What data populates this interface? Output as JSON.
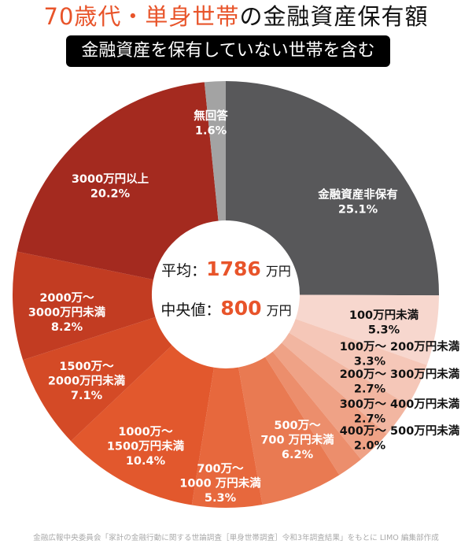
{
  "title": {
    "accent": "70歳代・単身世帯",
    "rest": "の金融資産保有額"
  },
  "subtitle": "金融資産を保有していない世帯を含む",
  "center": {
    "mean_label": "平均：",
    "mean_value": "1786",
    "mean_unit": "万円",
    "median_label": "中央値：",
    "median_value": "800",
    "median_unit": "万円"
  },
  "source": "金融広報中央委員会「家計の金融行動に関する世論調査［単身世帯調査］令和3年調査結果」をもとに LIMO 編集部作成",
  "chart_data": {
    "type": "pie",
    "donut": true,
    "title": "70歳代・単身世帯の金融資産保有額",
    "start": "top-clockwise",
    "slices": [
      {
        "label": "金融資産非保有",
        "value": 25.1,
        "value_label": "25.1%",
        "color": "#58585a",
        "text_color": "#ffffff"
      },
      {
        "label": "100万円未満",
        "value": 5.3,
        "value_label": "5.3%",
        "color": "#f7d7ce",
        "text_color": "#111111"
      },
      {
        "label": "100万〜 200万円未満",
        "value": 3.3,
        "value_label": "3.3%",
        "color": "#f5c7b8",
        "text_color": "#111111"
      },
      {
        "label": "200万〜 300万円未満",
        "value": 2.7,
        "value_label": "2.7%",
        "color": "#f2b6a1",
        "text_color": "#111111"
      },
      {
        "label": "300万〜 400万円未満",
        "value": 2.7,
        "value_label": "2.7%",
        "color": "#efa286",
        "text_color": "#111111"
      },
      {
        "label": "400万〜 500万円未満",
        "value": 2.0,
        "value_label": "2.0%",
        "color": "#ec8e6c",
        "text_color": "#111111"
      },
      {
        "label": "500万〜\n700 万円未満",
        "value": 6.2,
        "value_label": "6.2%",
        "color": "#e97a52",
        "text_color": "#ffffff"
      },
      {
        "label": "700万〜\n1000 万円未満",
        "value": 5.3,
        "value_label": "5.3%",
        "color": "#e7683d",
        "text_color": "#ffffff"
      },
      {
        "label": "1000万〜\n1500万円未満",
        "value": 10.4,
        "value_label": "10.4%",
        "color": "#e2582d",
        "text_color": "#ffffff"
      },
      {
        "label": "1500万〜\n2000万円未満",
        "value": 7.1,
        "value_label": "7.1%",
        "color": "#d44a26",
        "text_color": "#ffffff"
      },
      {
        "label": "2000万〜\n3000万円未満",
        "value": 8.2,
        "value_label": "8.2%",
        "color": "#c23c22",
        "text_color": "#ffffff"
      },
      {
        "label": "3000万円以上",
        "value": 20.2,
        "value_label": "20.2%",
        "color": "#a42a1f",
        "text_color": "#ffffff"
      },
      {
        "label": "無回答",
        "value": 1.6,
        "value_label": "1.6%",
        "color": "#a3a3a3",
        "text_color": "#ffffff"
      }
    ]
  }
}
